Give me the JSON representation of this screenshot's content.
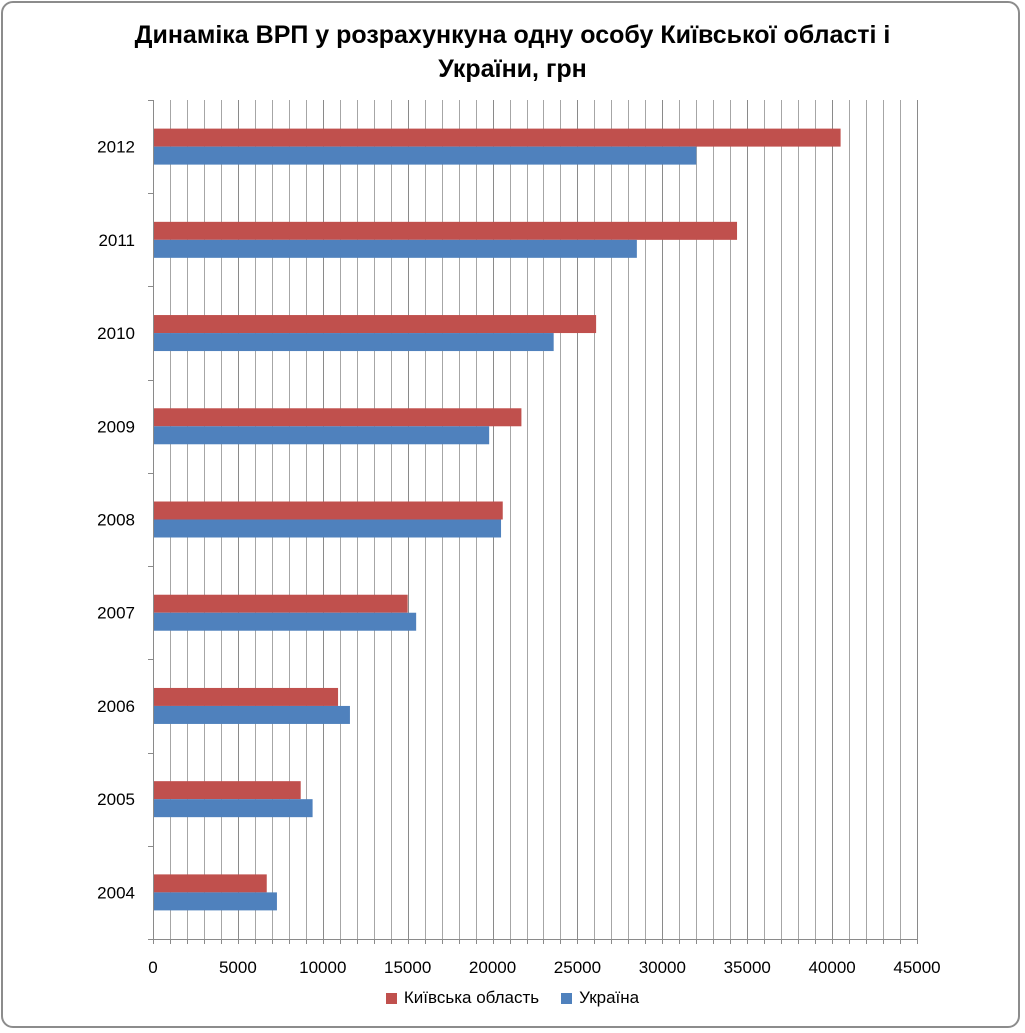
{
  "chart_data": {
    "type": "bar",
    "orientation": "horizontal",
    "title": "Динаміка ВРП у розрахункуна одну особу Київської області і України, грн",
    "categories": [
      "2004",
      "2005",
      "2006",
      "2007",
      "2008",
      "2009",
      "2010",
      "2011",
      "2012"
    ],
    "series": [
      {
        "name": "Київська область",
        "color": "#c0504d",
        "values": [
          6700,
          8700,
          10900,
          15000,
          20600,
          21700,
          26100,
          34400,
          40500
        ]
      },
      {
        "name": "Україна",
        "color": "#4f81bd",
        "values": [
          7300,
          9400,
          11600,
          15500,
          20500,
          19800,
          23600,
          28500,
          32000
        ]
      }
    ],
    "xlim": [
      0,
      45000
    ],
    "x_ticks": [
      "0",
      "5000",
      "10000",
      "15000",
      "20000",
      "25000",
      "30000",
      "35000",
      "40000",
      "45000"
    ],
    "x_tick_values": [
      0,
      5000,
      10000,
      15000,
      20000,
      25000,
      30000,
      35000,
      40000,
      45000
    ],
    "minor_gridlines": true,
    "minor_step": 1000,
    "legend_position": "bottom"
  }
}
